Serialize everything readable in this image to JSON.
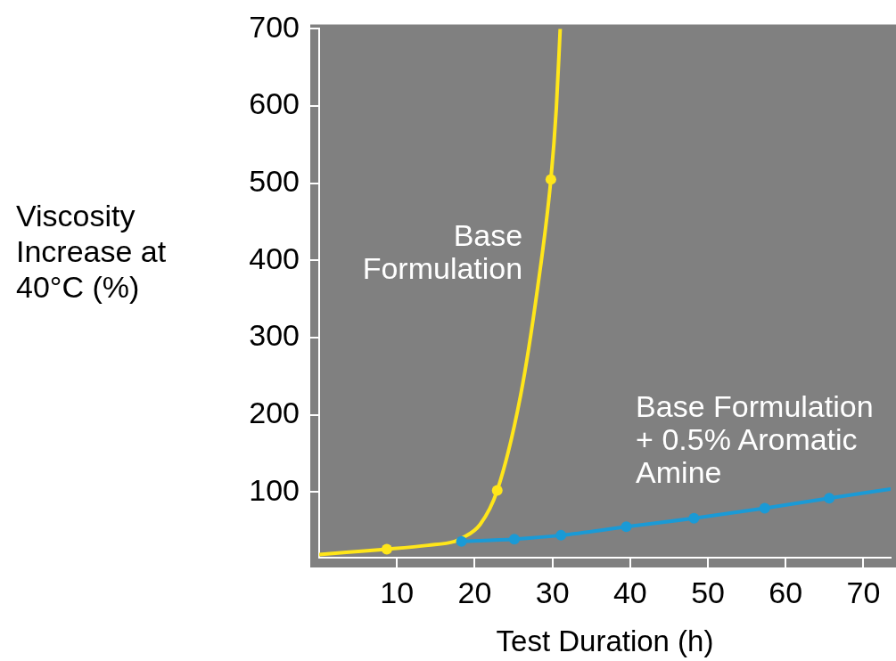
{
  "chart_data": {
    "type": "line",
    "xlabel": "Test Duration (h)",
    "ylabel": "Viscosity Increase at 40°C (%)",
    "xlim": [
      0,
      73.5
    ],
    "xticks": [
      10,
      20,
      30,
      40,
      50,
      60,
      70
    ],
    "ylim": [
      15,
      700
    ],
    "yticks": [
      100,
      200,
      300,
      400,
      500,
      600,
      700
    ],
    "legend": false,
    "marker": "none",
    "series": [
      {
        "name": "Base Formulation",
        "color": "#ffe61a",
        "x": [
          0,
          3.5,
          8.7,
          14,
          17.4,
          18.3,
          20.7,
          22.9,
          25.9,
          28.1,
          29.8,
          30.5,
          31.0
        ],
        "values": [
          19,
          22,
          26,
          31,
          36,
          40,
          58,
          102,
          225,
          365,
          505,
          597,
          700
        ]
      },
      {
        "name": "Base Formulation + 0.5% Aromatic Amine",
        "color": "#1a9ad6",
        "x": [
          18.3,
          25.1,
          31.1,
          39.5,
          48.2,
          57.3,
          65.6,
          73.5
        ],
        "values": [
          36,
          39,
          44,
          55,
          66,
          79,
          92,
          104
        ]
      },
      {
        "type": "scatter",
        "marker": "circle",
        "color": "#ffe61a",
        "x": [
          8.7,
          22.9,
          29.8
        ],
        "values": [
          26,
          102,
          505
        ]
      },
      {
        "type": "scatter",
        "marker": "circle",
        "color": "#1a9ad6",
        "x": [
          18.3,
          25.1,
          31.1,
          39.5,
          48.2,
          57.3,
          65.6
        ],
        "values": [
          36,
          39,
          44,
          55,
          66,
          79,
          92
        ]
      }
    ]
  }
}
